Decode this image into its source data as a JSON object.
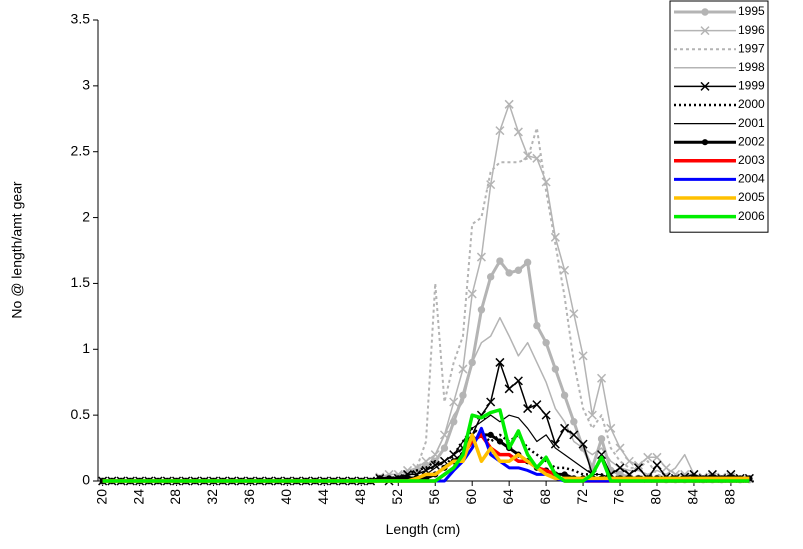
{
  "chart_data": {
    "type": "line",
    "y_label": "No @ length/amt gear",
    "x_label": "Length (cm)",
    "ylim": [
      0,
      3.5
    ],
    "yticks": [
      0,
      0.5,
      1,
      1.5,
      2,
      2.5,
      3,
      3.5
    ],
    "xlim": [
      19.5,
      90.5
    ],
    "xticks": [
      20,
      24,
      28,
      32,
      36,
      40,
      44,
      48,
      52,
      56,
      60,
      64,
      68,
      72,
      76,
      80,
      84,
      88
    ],
    "x": [
      20,
      21,
      22,
      23,
      24,
      25,
      26,
      27,
      28,
      29,
      30,
      31,
      32,
      33,
      34,
      35,
      36,
      37,
      38,
      39,
      40,
      41,
      42,
      43,
      44,
      45,
      46,
      47,
      48,
      49,
      50,
      51,
      52,
      53,
      54,
      55,
      56,
      57,
      58,
      59,
      60,
      61,
      62,
      63,
      64,
      65,
      66,
      67,
      68,
      69,
      70,
      71,
      72,
      73,
      74,
      75,
      76,
      77,
      78,
      79,
      80,
      81,
      82,
      83,
      84,
      85,
      86,
      87,
      88,
      89,
      90
    ],
    "series": [
      {
        "name": "1995",
        "color": "#b4b4b4",
        "width": 3,
        "style": "solid",
        "marker": "circle",
        "values": [
          0,
          0,
          0,
          0,
          0,
          0,
          0,
          0,
          0,
          0,
          0,
          0,
          0,
          0,
          0,
          0,
          0,
          0,
          0,
          0,
          0,
          0,
          0,
          0,
          0,
          0,
          0,
          0,
          0,
          0,
          0.02,
          0.02,
          0.03,
          0.05,
          0.08,
          0.12,
          0.15,
          0.25,
          0.45,
          0.65,
          0.9,
          1.3,
          1.55,
          1.67,
          1.58,
          1.6,
          1.66,
          1.18,
          1.05,
          0.85,
          0.65,
          0.45,
          0.25,
          0.1,
          0.32,
          0.08,
          0.05,
          0.03,
          0.02,
          0.02,
          0.02,
          0.01,
          0.01,
          0.01,
          0.01,
          0.01,
          0.01,
          0.01,
          0.01,
          0.01,
          0.01
        ]
      },
      {
        "name": "1996",
        "color": "#b4b4b4",
        "width": 1.5,
        "style": "solid",
        "marker": "x",
        "values": [
          0,
          0,
          0,
          0,
          0,
          0,
          0,
          0,
          0,
          0,
          0,
          0,
          0,
          0,
          0,
          0,
          0,
          0,
          0,
          0,
          0,
          0,
          0,
          0,
          0,
          0,
          0,
          0,
          0,
          0,
          0.03,
          0.05,
          0.05,
          0.08,
          0.1,
          0.15,
          0.2,
          0.35,
          0.6,
          0.85,
          1.42,
          1.7,
          2.25,
          2.66,
          2.86,
          2.65,
          2.47,
          2.45,
          2.27,
          1.85,
          1.6,
          1.27,
          0.95,
          0.5,
          0.78,
          0.4,
          0.25,
          0.15,
          0.12,
          0.18,
          0.18,
          0.1,
          0.05,
          0.05,
          0.05,
          0.03,
          0.03,
          0.03,
          0.03,
          0.02,
          0.02
        ]
      },
      {
        "name": "1997",
        "color": "#b4b4b4",
        "width": 2,
        "style": "dotted",
        "marker": "none",
        "values": [
          0,
          0,
          0,
          0,
          0,
          0,
          0,
          0,
          0,
          0,
          0,
          0,
          0,
          0,
          0,
          0,
          0,
          0,
          0,
          0,
          0,
          0,
          0,
          0,
          0,
          0,
          0,
          0,
          0,
          0,
          0.02,
          0.02,
          0.03,
          0.05,
          0.1,
          0.3,
          1.5,
          0.6,
          0.9,
          1.1,
          1.95,
          2.0,
          2.35,
          2.42,
          2.42,
          2.42,
          2.45,
          2.68,
          2.2,
          1.8,
          1.4,
          0.9,
          0.55,
          0.4,
          0.5,
          0.25,
          0.15,
          0.1,
          0.1,
          0.15,
          0.05,
          0.03,
          0.03,
          0.03,
          0.03,
          0.03,
          0.03,
          0.03,
          0.03,
          0.03,
          0.03
        ]
      },
      {
        "name": "1998",
        "color": "#b4b4b4",
        "width": 1.5,
        "style": "solid",
        "marker": "none",
        "values": [
          0,
          0,
          0,
          0,
          0,
          0,
          0,
          0,
          0,
          0,
          0,
          0,
          0,
          0,
          0,
          0,
          0,
          0,
          0,
          0,
          0,
          0,
          0,
          0,
          0,
          0,
          0,
          0,
          0,
          0,
          0.02,
          0.02,
          0.03,
          0.05,
          0.08,
          0.1,
          0.2,
          0.35,
          0.5,
          0.6,
          0.9,
          1.05,
          1.1,
          1.24,
          1.1,
          0.95,
          1.05,
          0.9,
          0.75,
          0.55,
          0.45,
          0.3,
          0.25,
          0.2,
          0.25,
          0.15,
          0.1,
          0.08,
          0.08,
          0.05,
          0.08,
          0.05,
          0.1,
          0.2,
          0.05,
          0.03,
          0.03,
          0.03,
          0.03,
          0.03,
          0.03
        ]
      },
      {
        "name": "1999",
        "color": "#000000",
        "width": 1.5,
        "style": "solid",
        "marker": "x",
        "values": [
          0,
          0,
          0,
          0,
          0,
          0,
          0,
          0,
          0,
          0,
          0,
          0,
          0,
          0,
          0,
          0,
          0,
          0,
          0,
          0,
          0,
          0,
          0,
          0,
          0,
          0,
          0,
          0,
          0,
          0,
          0.02,
          0,
          0.02,
          0.05,
          0.05,
          0.08,
          0.12,
          0.15,
          0.2,
          0.25,
          0.35,
          0.5,
          0.6,
          0.9,
          0.7,
          0.76,
          0.55,
          0.58,
          0.5,
          0.28,
          0.4,
          0.35,
          0.28,
          0.05,
          0.2,
          0.05,
          0.1,
          0.05,
          0.1,
          0.02,
          0.12,
          0.03,
          0.02,
          0.03,
          0.05,
          0.02,
          0.05,
          0.02,
          0.05,
          0.02,
          0.02
        ]
      },
      {
        "name": "2000",
        "color": "#000000",
        "width": 2.5,
        "style": "dotted",
        "marker": "none",
        "values": [
          0,
          0,
          0,
          0,
          0,
          0,
          0,
          0,
          0,
          0,
          0,
          0,
          0,
          0,
          0,
          0,
          0,
          0,
          0,
          0,
          0,
          0,
          0,
          0,
          0,
          0,
          0,
          0,
          0,
          0,
          0.02,
          0.02,
          0.03,
          0.05,
          0.08,
          0.1,
          0.15,
          0.1,
          0.2,
          0.3,
          0.4,
          0.35,
          0.3,
          0.35,
          0.3,
          0.35,
          0.25,
          0.2,
          0.15,
          0.1,
          0.1,
          0.08,
          0.05,
          0.05,
          0.05,
          0.03,
          0.03,
          0.03,
          0.03,
          0.03,
          0.03,
          0.03,
          0.03,
          0.03,
          0.03,
          0.03,
          0.03,
          0.03,
          0.03,
          0.03,
          0.03
        ]
      },
      {
        "name": "2001",
        "color": "#000000",
        "width": 1.2,
        "style": "solid",
        "marker": "none",
        "values": [
          0,
          0,
          0,
          0,
          0,
          0,
          0,
          0,
          0,
          0,
          0,
          0,
          0,
          0,
          0,
          0,
          0,
          0,
          0,
          0,
          0,
          0,
          0,
          0,
          0,
          0,
          0,
          0,
          0,
          0,
          0.02,
          0.02,
          0.02,
          0.03,
          0.03,
          0.05,
          0.1,
          0.15,
          0.2,
          0.3,
          0.4,
          0.45,
          0.5,
          0.45,
          0.5,
          0.48,
          0.4,
          0.3,
          0.35,
          0.25,
          0.2,
          0.15,
          0.1,
          0.05,
          0.05,
          0.02,
          0.02,
          0.02,
          0.02,
          0.02,
          0.02,
          0.02,
          0.02,
          0.02,
          0.02,
          0.02,
          0.02,
          0.02,
          0.02,
          0.02,
          0.02
        ]
      },
      {
        "name": "2002",
        "color": "#000000",
        "width": 3,
        "style": "solid",
        "marker": "circle",
        "values": [
          0,
          0,
          0,
          0,
          0,
          0,
          0,
          0,
          0,
          0,
          0,
          0,
          0,
          0,
          0,
          0,
          0,
          0,
          0,
          0,
          0,
          0,
          0,
          0,
          0,
          0,
          0,
          0,
          0,
          0,
          0.02,
          0.02,
          0.02,
          0.02,
          0.02,
          0.02,
          0.05,
          0.1,
          0.15,
          0.2,
          0.3,
          0.35,
          0.35,
          0.3,
          0.25,
          0.2,
          0.15,
          0.1,
          0.08,
          0.05,
          0.05,
          0.02,
          0.02,
          0.02,
          0.02,
          0.02,
          0.02,
          0.02,
          0.02,
          0.02,
          0.02,
          0.02,
          0.02,
          0.02,
          0.02,
          0.02,
          0.02,
          0.02,
          0.02,
          0.02,
          0.02
        ]
      },
      {
        "name": "2003",
        "color": "#ff0000",
        "width": 3.5,
        "style": "solid",
        "marker": "none",
        "values": [
          0,
          0,
          0,
          0,
          0,
          0,
          0,
          0,
          0,
          0,
          0,
          0,
          0,
          0,
          0,
          0,
          0,
          0,
          0,
          0,
          0,
          0,
          0,
          0,
          0,
          0,
          0,
          0,
          0,
          0,
          0,
          0,
          0,
          0,
          0,
          0,
          0,
          0.05,
          0.1,
          0.2,
          0.3,
          0.35,
          0.25,
          0.2,
          0.2,
          0.15,
          0.15,
          0.1,
          0.08,
          0.05,
          0,
          0,
          0,
          0,
          0,
          0,
          0,
          0,
          0,
          0,
          0,
          0,
          0,
          0,
          0,
          0,
          0,
          0,
          0,
          0,
          0
        ]
      },
      {
        "name": "2004",
        "color": "#0000ff",
        "width": 3,
        "style": "solid",
        "marker": "none",
        "values": [
          0,
          0,
          0,
          0,
          0,
          0,
          0,
          0,
          0,
          0,
          0,
          0,
          0,
          0,
          0,
          0,
          0,
          0,
          0,
          0,
          0,
          0,
          0,
          0,
          0,
          0,
          0,
          0,
          0,
          0,
          0,
          0,
          0,
          0,
          0,
          0,
          0,
          0,
          0.08,
          0.15,
          0.25,
          0.4,
          0.2,
          0.15,
          0.1,
          0.1,
          0.08,
          0.05,
          0.05,
          0.02,
          0,
          0,
          0,
          0,
          0,
          0,
          0,
          0,
          0,
          0,
          0,
          0,
          0,
          0,
          0,
          0,
          0,
          0,
          0,
          0,
          0
        ]
      },
      {
        "name": "2005",
        "color": "#ffc000",
        "width": 3.5,
        "style": "solid",
        "marker": "none",
        "values": [
          0,
          0,
          0,
          0,
          0,
          0,
          0,
          0,
          0,
          0,
          0,
          0,
          0,
          0,
          0,
          0,
          0,
          0,
          0,
          0,
          0,
          0,
          0,
          0,
          0,
          0,
          0,
          0,
          0,
          0,
          0,
          0,
          0,
          0,
          0.02,
          0.05,
          0.05,
          0.1,
          0.15,
          0.15,
          0.35,
          0.15,
          0.25,
          0.15,
          0.15,
          0.2,
          0.15,
          0.1,
          0.05,
          0.02,
          0.02,
          0.02,
          0.02,
          0.02,
          0.02,
          0.02,
          0.02,
          0.02,
          0.02,
          0.02,
          0.02,
          0.02,
          0.02,
          0.02,
          0.02,
          0.02,
          0.02,
          0.02,
          0.02,
          0.02,
          0.02
        ]
      },
      {
        "name": "2006",
        "color": "#00ee00",
        "width": 3.5,
        "style": "solid",
        "marker": "none",
        "values": [
          0,
          0,
          0,
          0,
          0,
          0,
          0,
          0,
          0,
          0,
          0,
          0,
          0,
          0,
          0,
          0,
          0,
          0,
          0,
          0,
          0,
          0,
          0,
          0,
          0,
          0,
          0,
          0,
          0,
          0,
          0,
          0,
          0,
          0,
          0,
          0,
          0,
          0.05,
          0.1,
          0.2,
          0.5,
          0.48,
          0.52,
          0.54,
          0.25,
          0.38,
          0.2,
          0.1,
          0.18,
          0.05,
          0,
          0,
          0,
          0.05,
          0.18,
          0,
          0,
          0,
          0,
          0,
          0,
          0,
          0,
          0,
          0,
          0,
          0,
          0,
          0,
          0,
          0
        ]
      }
    ]
  }
}
